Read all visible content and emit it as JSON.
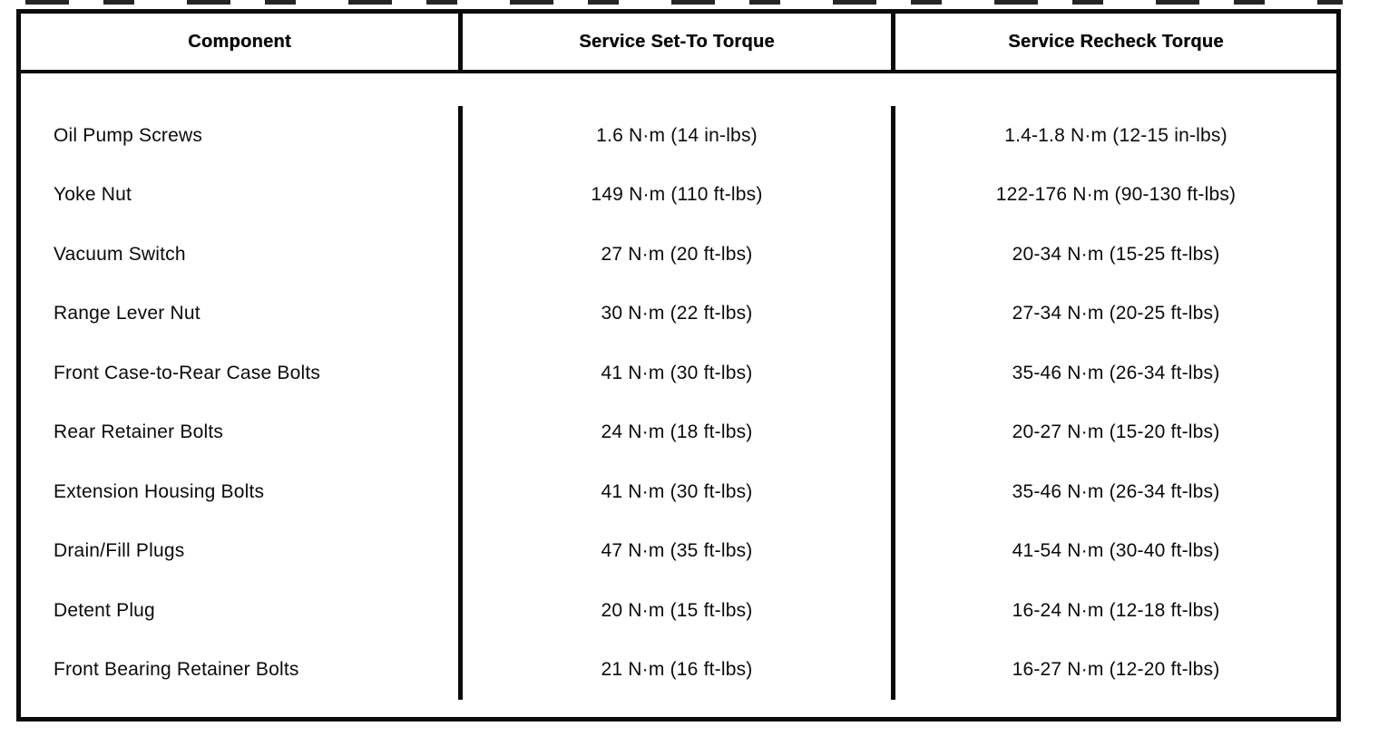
{
  "colors": {
    "ink": "#0b0b0b",
    "paper": "#ffffff"
  },
  "table": {
    "columns": [
      "Component",
      "Service Set-To Torque",
      "Service Recheck Torque"
    ],
    "rows": [
      {
        "component": "Oil Pump Screws",
        "set_to": "1.6 N·m (14 in-lbs)",
        "recheck": "1.4-1.8 N·m (12-15 in-lbs)"
      },
      {
        "component": "Yoke Nut",
        "set_to": "149 N·m (110 ft-lbs)",
        "recheck": "122-176 N·m (90-130 ft-lbs)"
      },
      {
        "component": "Vacuum Switch",
        "set_to": "27 N·m (20 ft-lbs)",
        "recheck": "20-34 N·m (15-25 ft-lbs)"
      },
      {
        "component": "Range Lever Nut",
        "set_to": "30 N·m (22 ft-lbs)",
        "recheck": "27-34 N·m (20-25 ft-lbs)"
      },
      {
        "component": "Front Case-to-Rear Case Bolts",
        "set_to": "41 N·m (30 ft-lbs)",
        "recheck": "35-46 N·m (26-34 ft-lbs)"
      },
      {
        "component": "Rear Retainer Bolts",
        "set_to": "24 N·m (18 ft-lbs)",
        "recheck": "20-27 N·m (15-20 ft-lbs)"
      },
      {
        "component": "Extension Housing Bolts",
        "set_to": "41 N·m (30 ft-lbs)",
        "recheck": "35-46 N·m (26-34 ft-lbs)"
      },
      {
        "component": "Drain/Fill Plugs",
        "set_to": "47 N·m (35 ft-lbs)",
        "recheck": "41-54 N·m (30-40 ft-lbs)"
      },
      {
        "component": "Detent Plug",
        "set_to": "20 N·m (15 ft-lbs)",
        "recheck": "16-24 N·m (12-18 ft-lbs)"
      },
      {
        "component": "Front Bearing Retainer Bolts",
        "set_to": "21 N·m (16 ft-lbs)",
        "recheck": "16-27 N·m (12-20 ft-lbs)"
      }
    ]
  }
}
